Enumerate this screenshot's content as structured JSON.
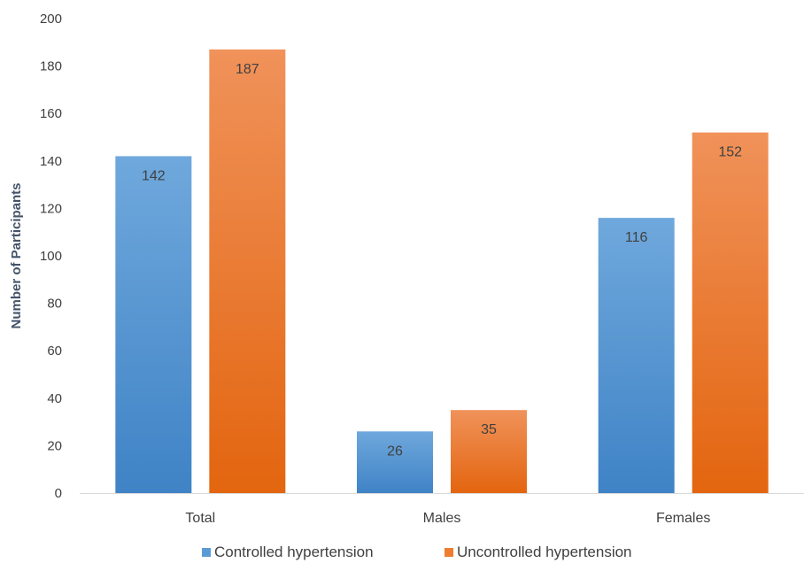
{
  "chart_data": {
    "type": "bar",
    "categories": [
      "Total",
      "Males",
      "Females"
    ],
    "series": [
      {
        "name": "Controlled hypertension",
        "values": [
          142,
          26,
          116
        ],
        "color": "#5b9bd5"
      },
      {
        "name": "Uncontrolled hypertension",
        "values": [
          187,
          35,
          152
        ],
        "color": "#ed7d31"
      }
    ],
    "ylabel": "Number of Participants",
    "xlabel": "",
    "ylim": [
      0,
      200
    ],
    "yticks": [
      0,
      20,
      40,
      60,
      80,
      100,
      120,
      140,
      160,
      180,
      200
    ],
    "grid": false,
    "legend_position": "bottom",
    "data_labels": true
  }
}
